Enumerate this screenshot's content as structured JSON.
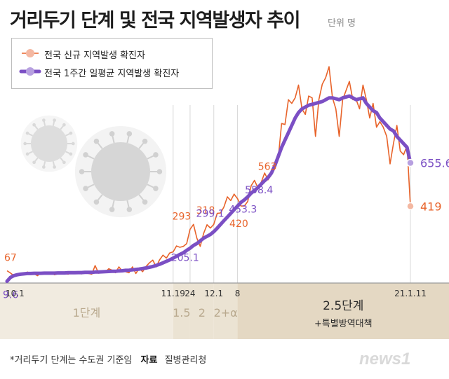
{
  "title": "거리두기 단계 및 전국 지역발생자 추이",
  "unit_label": "단위 명",
  "legend": {
    "daily": "전국 신규 지역발생 확진자",
    "avg": "전국 1주간 일평균 지역발생 확진자"
  },
  "footnote": {
    "note": "*거리두기 단계는 수도권 기준임",
    "source_label": "자료",
    "source": "질병관리청"
  },
  "logo_text": "news1",
  "colors": {
    "daily": "#e8632a",
    "avg": "#7b4fc4",
    "stage_bg": "#f1ebe0",
    "stage_bg_dark": "#e4d8c3",
    "stage_text": "#b9a98e"
  },
  "stages": [
    {
      "label": "1단계",
      "sub": "",
      "shade": "light"
    },
    {
      "label": "1.5",
      "sub": "",
      "shade": "medium"
    },
    {
      "label": "2",
      "sub": "",
      "shade": "medium"
    },
    {
      "label": "2+α",
      "sub": "",
      "shade": "medium"
    },
    {
      "label": "2.5단계",
      "sub": "+특별방역대책",
      "shade": "dark"
    }
  ],
  "date_ticks": [
    "10.1",
    "11.19",
    "24",
    "12.1",
    "8",
    "21.1.11"
  ],
  "chart_data": {
    "type": "line",
    "x_start": "10.1",
    "x_end": "21.1.11",
    "ylim": [
      0,
      1200
    ],
    "series": [
      {
        "name": "전국 신규 지역발생 확진자",
        "values": [
          67,
          55,
          40,
          50,
          45,
          48,
          60,
          52,
          50,
          40,
          55,
          58,
          54,
          60,
          45,
          50,
          56,
          52,
          48,
          58,
          55,
          62,
          50,
          58,
          52,
          48,
          95,
          54,
          57,
          60,
          78,
          70,
          56,
          88,
          65,
          62,
          56,
          88,
          52,
          80,
          62,
          90,
          110,
          125,
          88,
          126,
          152,
          136,
          164,
          170,
          202,
          195,
          200,
          215,
          293,
          320,
          245,
          200,
          271,
          318,
          300,
          320,
          380,
          382,
          415,
          470,
          450,
          485,
          460,
          420,
          420,
          445,
          530,
          560,
          520,
          550,
          600,
          563,
          615,
          640,
          680,
          870,
          865,
          1000,
          980,
          1010,
          1080,
          950,
          920,
          1020,
          1010,
          800,
          1000,
          1085,
          1120,
          1180,
          1010,
          950,
          800,
          1000,
          1050,
          1100,
          1000,
          1000,
          950,
          1080,
          1000,
          900,
          980,
          850,
          880,
          850,
          800,
          650,
          760,
          860,
          720,
          700,
          750,
          419
        ],
        "annotations": [
          {
            "index": 0,
            "text": "67"
          },
          {
            "index": 54,
            "text": "293"
          },
          {
            "index": 59,
            "text": "318"
          },
          {
            "index": 69,
            "text": "420"
          },
          {
            "index": 77,
            "text": "563"
          },
          {
            "index": 119,
            "text": "419"
          }
        ]
      },
      {
        "name": "전국 1주간 일평균 지역발생 확진자",
        "values": [
          9.6,
          30,
          40,
          45,
          48,
          50,
          52,
          52,
          53,
          53,
          53,
          54,
          54,
          54,
          54,
          55,
          55,
          55,
          56,
          56,
          56,
          57,
          57,
          58,
          58,
          58,
          60,
          60,
          61,
          62,
          63,
          64,
          64,
          66,
          67,
          69,
          70,
          72,
          74,
          76,
          79,
          82,
          86,
          90,
          96,
          102,
          110,
          118,
          126,
          136,
          146,
          156,
          165,
          178,
          190,
          205.1,
          215,
          230,
          245,
          255,
          265,
          280,
          299.1,
          320,
          340,
          360,
          380,
          400,
          420,
          440,
          453.3,
          470,
          490,
          505,
          520,
          540,
          558.4,
          575,
          600,
          640,
          690,
          740,
          780,
          820,
          860,
          900,
          930,
          950,
          960,
          970,
          975,
          980,
          985,
          990,
          1000,
          1010,
          1010,
          1005,
          1000,
          1010,
          1015,
          1020,
          1010,
          1000,
          1005,
          1010,
          980,
          960,
          940,
          930,
          900,
          880,
          860,
          840,
          830,
          800,
          780,
          760,
          740,
          655.6
        ],
        "annotations": [
          {
            "index": 0,
            "text": "9.6"
          },
          {
            "index": 55,
            "text": "205.1"
          },
          {
            "index": 62,
            "text": "299.1"
          },
          {
            "index": 70,
            "text": "453.3"
          },
          {
            "index": 76,
            "text": "558.4"
          },
          {
            "index": 119,
            "text": "655.6"
          }
        ]
      }
    ]
  }
}
